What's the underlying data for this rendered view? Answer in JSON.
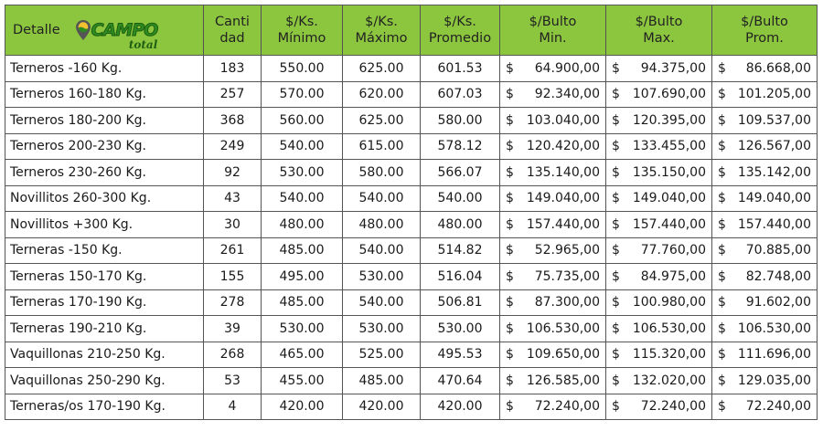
{
  "header": {
    "detalle": "Detalle",
    "logo_text": "CAMPO",
    "logo_subtext": "total",
    "columns": [
      [
        "Canti",
        "dad"
      ],
      [
        "$/Ks.",
        "Mínimo"
      ],
      [
        "$/Ks.",
        "Máximo"
      ],
      [
        "$/Ks.",
        "Promedio"
      ],
      [
        "$/Bulto",
        "Min."
      ],
      [
        "$/Bulto",
        "Max."
      ],
      [
        "$/Bulto",
        "Prom."
      ]
    ]
  },
  "currency_symbol": "$",
  "colors": {
    "header_bg": "#8cc63f",
    "logo_green": "#2e8b1f"
  },
  "rows": [
    [
      "Terneros -160 Kg.",
      "183",
      "550.00",
      "625.00",
      "601.53",
      "64.900,00",
      "94.375,00",
      "86.668,00"
    ],
    [
      "Terneros 160-180 Kg.",
      "257",
      "570.00",
      "620.00",
      "607.03",
      "92.340,00",
      "107.690,00",
      "101.205,00"
    ],
    [
      "Terneros 180-200 Kg.",
      "368",
      "560.00",
      "625.00",
      "580.00",
      "103.040,00",
      "120.395,00",
      "109.537,00"
    ],
    [
      "Terneros 200-230 Kg.",
      "249",
      "540.00",
      "615.00",
      "578.12",
      "120.420,00",
      "133.455,00",
      "126.567,00"
    ],
    [
      "Terneros 230-260 Kg.",
      "92",
      "530.00",
      "580.00",
      "566.07",
      "135.140,00",
      "135.150,00",
      "135.142,00"
    ],
    [
      "Novillitos 260-300 Kg.",
      "43",
      "540.00",
      "540.00",
      "540.00",
      "149.040,00",
      "149.040,00",
      "149.040,00"
    ],
    [
      "Novillitos +300 Kg.",
      "30",
      "480.00",
      "480.00",
      "480.00",
      "157.440,00",
      "157.440,00",
      "157.440,00"
    ],
    [
      "Terneras -150 Kg.",
      "261",
      "485.00",
      "540.00",
      "514.82",
      "52.965,00",
      "77.760,00",
      "70.885,00"
    ],
    [
      "Terneras 150-170 Kg.",
      "155",
      "495.00",
      "530.00",
      "516.04",
      "75.735,00",
      "84.975,00",
      "82.748,00"
    ],
    [
      "Terneras 170-190 Kg.",
      "278",
      "485.00",
      "540.00",
      "506.81",
      "87.300,00",
      "100.980,00",
      "91.602,00"
    ],
    [
      "Terneras 190-210 Kg.",
      "39",
      "530.00",
      "530.00",
      "530.00",
      "106.530,00",
      "106.530,00",
      "106.530,00"
    ],
    [
      "Vaquillonas 210-250 Kg.",
      "268",
      "465.00",
      "525.00",
      "495.53",
      "109.650,00",
      "115.320,00",
      "111.696,00"
    ],
    [
      "Vaquillonas 250-290 Kg.",
      "53",
      "455.00",
      "485.00",
      "470.64",
      "126.585,00",
      "132.020,00",
      "129.035,00"
    ],
    [
      "Terneras/os 170-190 Kg.",
      "4",
      "420.00",
      "420.00",
      "420.00",
      "72.240,00",
      "72.240,00",
      "72.240,00"
    ]
  ]
}
